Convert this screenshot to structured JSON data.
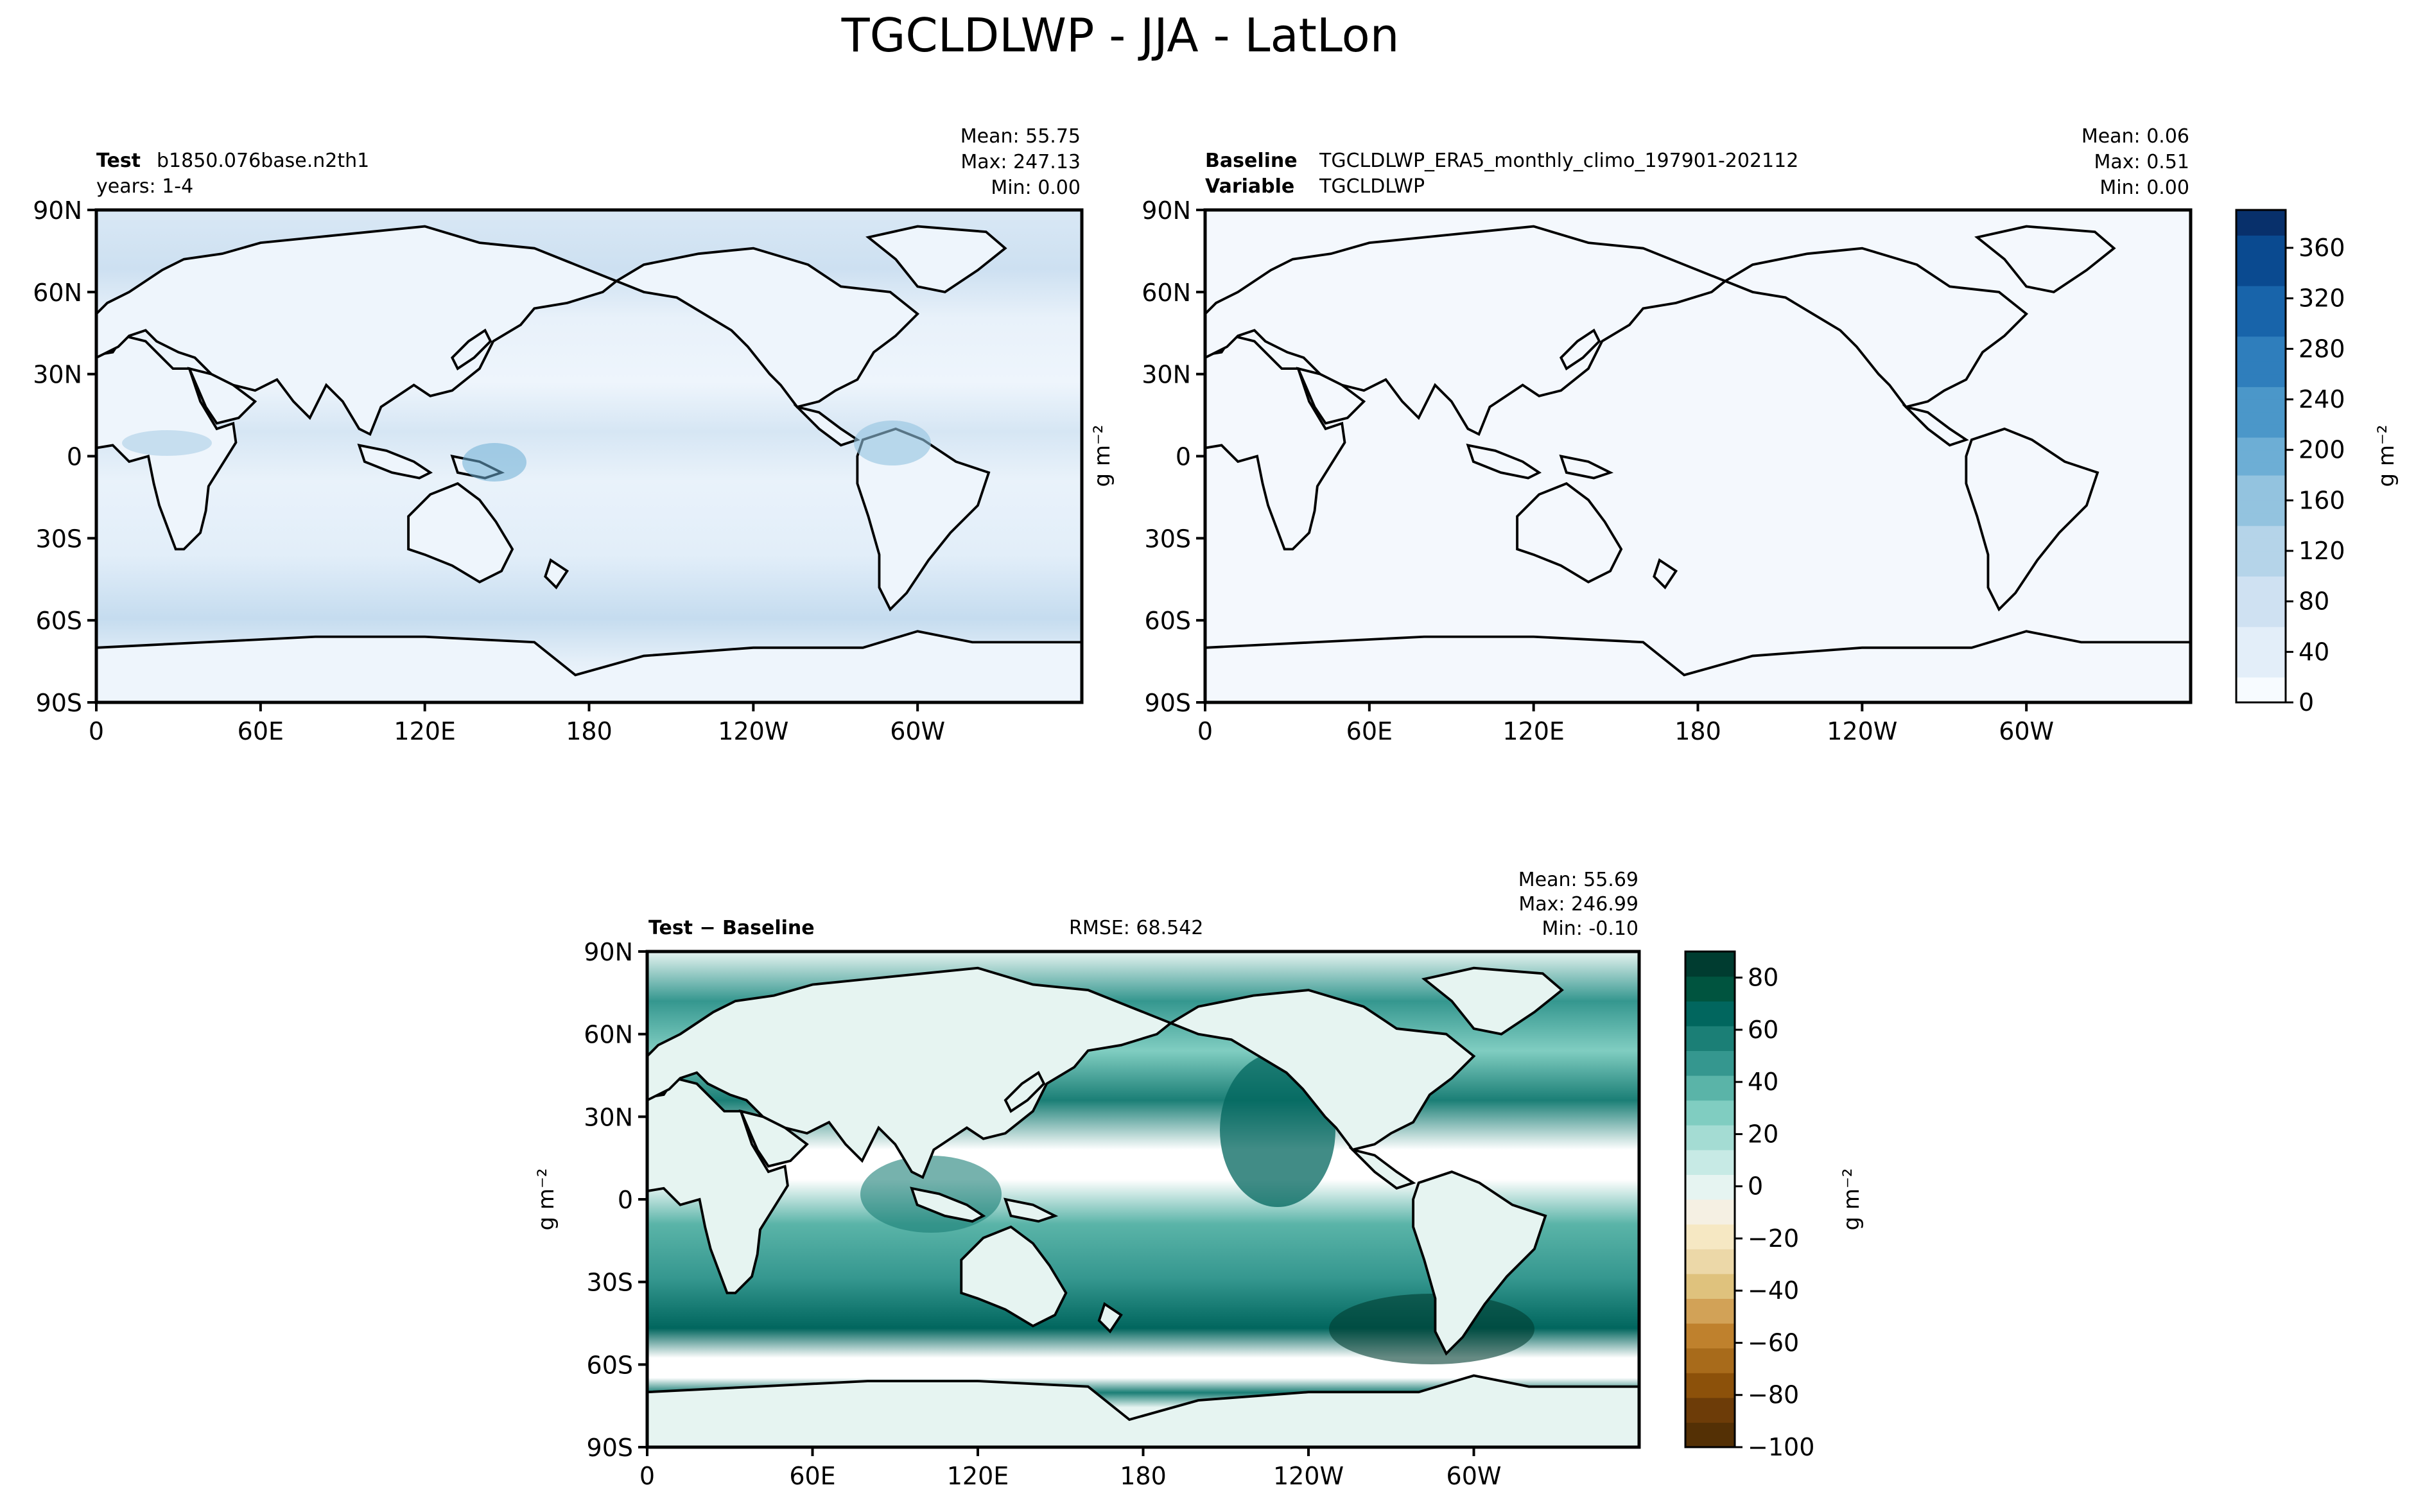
{
  "figure": {
    "title": "TGCLDLWP - JJA - LatLon"
  },
  "colors": {
    "ocean_light": "#f4f8fd",
    "blues": [
      "#f7fbff",
      "#e3eef9",
      "#cfe1f2",
      "#b5d4e9",
      "#93c3df",
      "#6daed5",
      "#4b97c9",
      "#2f7ebc",
      "#1864aa",
      "#0a4a90",
      "#08306b"
    ],
    "diverging": [
      "#543005",
      "#6d3c08",
      "#8c510a",
      "#a86b1b",
      "#bf812d",
      "#d2a257",
      "#dfc27d",
      "#ecd8a8",
      "#f6e8c3",
      "#f5f0e3",
      "#e6f4f1",
      "#c7eae5",
      "#a4dcd3",
      "#80cdc1",
      "#5ab4a8",
      "#35978f",
      "#1b7f76",
      "#01665e",
      "#00543f",
      "#003c30"
    ],
    "coast": "#000000"
  },
  "chart_data": [
    {
      "type": "heatmap",
      "panel": "test",
      "header_bold": "Test",
      "header_text": "b1850.076base.n2th1",
      "subheader": "years: 1-4",
      "stats": [
        "Mean: 55.75",
        "Max: 247.13",
        "Min:  0.00"
      ],
      "xticks": [
        "0",
        "60E",
        "120E",
        "180",
        "120W",
        "60W"
      ],
      "yticks": [
        "90N",
        "60N",
        "30N",
        "0",
        "30S",
        "60S",
        "90S"
      ],
      "xlim": [
        0,
        360
      ],
      "ylim": [
        -90,
        90
      ],
      "colormap": "Blues",
      "vmin": 0,
      "vmax": 390
    },
    {
      "type": "heatmap",
      "panel": "baseline",
      "header_bold": "Baseline",
      "header_text": "TGCLDLWP_ERA5_monthly_climo_197901-202112",
      "header2_bold": "Variable",
      "header2_text": "TGCLDLWP",
      "stats": [
        "Mean:  0.06",
        "Max:  0.51",
        "Min:  0.00"
      ],
      "xticks": [
        "0",
        "60E",
        "120E",
        "180",
        "120W",
        "60W"
      ],
      "yticks": [
        "90N",
        "60N",
        "30N",
        "0",
        "30S",
        "60S",
        "90S"
      ],
      "ylabel": "g m⁻²",
      "colorbar_label": "g m⁻²",
      "colorbar_ticks": [
        "0",
        "40",
        "80",
        "120",
        "160",
        "200",
        "240",
        "280",
        "320",
        "360"
      ],
      "colorbar_values": [
        0,
        40,
        80,
        120,
        160,
        200,
        240,
        280,
        320,
        360
      ],
      "colormap": "Blues",
      "vmin": 0,
      "vmax": 390
    },
    {
      "type": "heatmap",
      "panel": "difference",
      "header_bold": "Test − Baseline",
      "rmse": "RMSE: 68.542",
      "stats": [
        "Mean: 55.69",
        "Max: 246.99",
        "Min: -0.10"
      ],
      "xticks": [
        "0",
        "60E",
        "120E",
        "180",
        "120W",
        "60W"
      ],
      "yticks": [
        "90N",
        "60N",
        "30N",
        "0",
        "30S",
        "60S",
        "90S"
      ],
      "ylabel": "g m⁻²",
      "colorbar_label": "g m⁻²",
      "colorbar_ticks": [
        "80",
        "60",
        "40",
        "20",
        "0",
        "−20",
        "−40",
        "−60",
        "−80",
        "−100"
      ],
      "colorbar_values": [
        80,
        60,
        40,
        20,
        0,
        -20,
        -40,
        -60,
        -80,
        -100
      ],
      "colormap": "BrBG",
      "vmin": -100,
      "vmax": 90
    }
  ]
}
